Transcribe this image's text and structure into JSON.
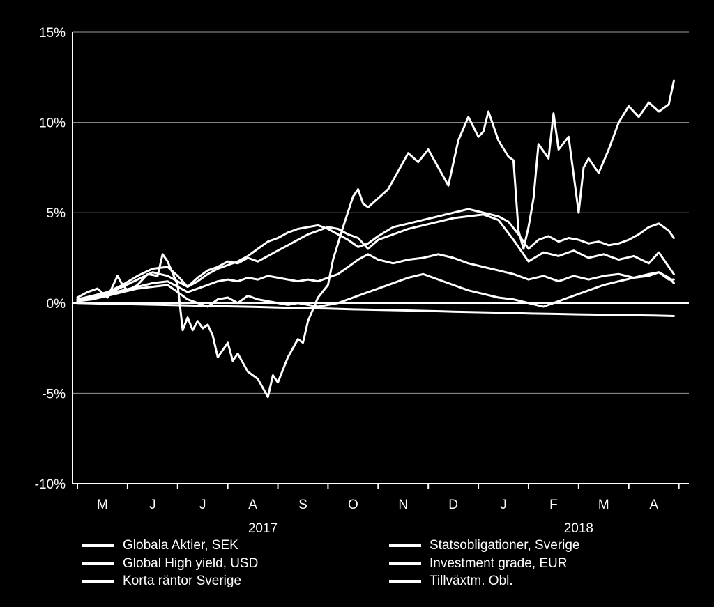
{
  "chart_data": {
    "type": "line",
    "title": "",
    "xlabel": "",
    "ylabel": "",
    "ylim": [
      -10,
      15
    ],
    "yticks": [
      {
        "value": 15,
        "label": "15%"
      },
      {
        "value": 10,
        "label": "10%"
      },
      {
        "value": 5,
        "label": "5%"
      },
      {
        "value": 0,
        "label": "0%"
      },
      {
        "value": -5,
        "label": "-5%"
      },
      {
        "value": -10,
        "label": "-10%"
      }
    ],
    "month_labels": [
      "M",
      "J",
      "J",
      "A",
      "S",
      "O",
      "N",
      "D",
      "J",
      "F",
      "M",
      "A"
    ],
    "year_labels": [
      {
        "label": "2017",
        "month_index": 3.7
      },
      {
        "label": "2018",
        "month_index": 10.0
      }
    ],
    "grid": "horizontal",
    "legend_placement": "bottom",
    "line_color": "#ffffff",
    "x_unit": "months since end of April 2017",
    "series": [
      {
        "name": "Globala Aktier, SEK",
        "x": [
          0,
          0.2,
          0.4,
          0.6,
          0.8,
          0.9,
          1.0,
          1.2,
          1.4,
          1.6,
          1.7,
          1.8,
          2.0,
          2.1,
          2.2,
          2.3,
          2.4,
          2.5,
          2.6,
          2.7,
          2.8,
          3.0,
          3.1,
          3.2,
          3.4,
          3.6,
          3.8,
          3.9,
          4.0,
          4.2,
          4.4,
          4.5,
          4.6,
          4.8,
          5.0,
          5.1,
          5.3,
          5.5,
          5.6,
          5.7,
          5.8,
          6.0,
          6.2,
          6.4,
          6.6,
          6.8,
          7.0,
          7.2,
          7.4,
          7.6,
          7.8,
          8.0,
          8.1,
          8.2,
          8.4,
          8.6,
          8.7,
          8.8,
          8.9,
          9.0,
          9.1,
          9.2,
          9.4,
          9.5,
          9.6,
          9.8,
          10.0,
          10.1,
          10.2,
          10.4,
          10.6,
          10.8,
          11.0,
          11.2,
          11.4,
          11.6,
          11.8,
          11.9
        ],
        "y": [
          0.3,
          0.6,
          0.8,
          0.3,
          1.5,
          1.0,
          0.7,
          1.0,
          1.6,
          1.5,
          2.7,
          2.3,
          1.0,
          -1.5,
          -0.8,
          -1.5,
          -1.0,
          -1.4,
          -1.2,
          -1.8,
          -3.0,
          -2.2,
          -3.2,
          -2.8,
          -3.8,
          -4.2,
          -5.2,
          -4.0,
          -4.4,
          -3.0,
          -2.0,
          -2.2,
          -1.0,
          0.3,
          1.0,
          2.4,
          4.2,
          5.9,
          6.3,
          5.5,
          5.3,
          5.8,
          6.3,
          7.3,
          8.3,
          7.8,
          8.5,
          7.5,
          6.5,
          9.0,
          10.3,
          9.2,
          9.5,
          10.6,
          9.0,
          8.1,
          7.9,
          4.0,
          3.0,
          4.2,
          5.8,
          8.8,
          8.0,
          10.5,
          8.5,
          9.2,
          5.0,
          7.5,
          8.0,
          7.2,
          8.5,
          10.0,
          10.9,
          10.3,
          11.1,
          10.6,
          11.0,
          12.3
        ]
      },
      {
        "name": "Global High yield, USD",
        "x": [
          0,
          0.3,
          0.6,
          0.9,
          1.2,
          1.5,
          1.8,
          2.0,
          2.2,
          2.4,
          2.6,
          2.8,
          3.0,
          3.2,
          3.4,
          3.6,
          3.8,
          4.0,
          4.2,
          4.4,
          4.6,
          4.8,
          5.0,
          5.2,
          5.4,
          5.6,
          5.8,
          6.0,
          6.3,
          6.6,
          6.9,
          7.2,
          7.5,
          7.8,
          8.1,
          8.4,
          8.6,
          8.8,
          9.0,
          9.2,
          9.4,
          9.6,
          9.8,
          10.0,
          10.2,
          10.4,
          10.6,
          10.8,
          11.0,
          11.2,
          11.4,
          11.6,
          11.8,
          11.9
        ],
        "y": [
          0.1,
          0.3,
          0.5,
          0.9,
          1.3,
          1.7,
          1.5,
          1.2,
          0.9,
          1.2,
          1.6,
          1.9,
          2.1,
          2.3,
          2.6,
          3.0,
          3.4,
          3.6,
          3.9,
          4.1,
          4.2,
          4.3,
          4.1,
          3.8,
          3.5,
          3.1,
          3.3,
          3.7,
          4.2,
          4.4,
          4.6,
          4.8,
          5.0,
          5.2,
          5.0,
          4.8,
          4.5,
          3.8,
          3.0,
          3.5,
          3.7,
          3.4,
          3.6,
          3.5,
          3.3,
          3.4,
          3.2,
          3.3,
          3.5,
          3.8,
          4.2,
          4.4,
          4.0,
          3.6
        ]
      },
      {
        "name": "Korta räntor Sverige",
        "x": [
          0,
          0.5,
          1.0,
          1.5,
          2.0,
          2.5,
          3.0,
          3.5,
          4.0,
          4.5,
          5.0,
          5.5,
          6.0,
          6.5,
          7.0,
          7.5,
          8.0,
          8.5,
          9.0,
          9.5,
          10.0,
          10.5,
          11.0,
          11.5,
          11.9
        ],
        "y": [
          0.0,
          -0.03,
          -0.06,
          -0.09,
          -0.12,
          -0.15,
          -0.18,
          -0.21,
          -0.25,
          -0.28,
          -0.31,
          -0.35,
          -0.38,
          -0.41,
          -0.44,
          -0.48,
          -0.51,
          -0.54,
          -0.58,
          -0.6,
          -0.63,
          -0.65,
          -0.67,
          -0.69,
          -0.72
        ]
      },
      {
        "name": "Statsobligationer, Sverige",
        "x": [
          0,
          0.3,
          0.6,
          0.9,
          1.2,
          1.5,
          1.8,
          2.0,
          2.2,
          2.4,
          2.6,
          2.8,
          3.0,
          3.2,
          3.4,
          3.6,
          3.8,
          4.0,
          4.2,
          4.4,
          4.6,
          4.8,
          5.0,
          5.2,
          5.4,
          5.6,
          5.8,
          6.0,
          6.3,
          6.6,
          6.9,
          7.2,
          7.5,
          7.8,
          8.1,
          8.4,
          8.7,
          9.0,
          9.3,
          9.6,
          9.9,
          10.2,
          10.5,
          10.8,
          11.1,
          11.4,
          11.6,
          11.8,
          11.9
        ],
        "y": [
          0.2,
          0.4,
          0.6,
          1.0,
          1.5,
          1.9,
          2.0,
          1.5,
          0.9,
          1.4,
          1.8,
          2.0,
          2.3,
          2.2,
          2.5,
          2.3,
          2.6,
          2.9,
          3.2,
          3.5,
          3.8,
          4.0,
          4.2,
          4.1,
          3.8,
          3.6,
          3.0,
          3.5,
          3.8,
          4.1,
          4.3,
          4.5,
          4.7,
          4.8,
          4.9,
          4.6,
          3.5,
          2.3,
          2.8,
          2.6,
          2.9,
          2.5,
          2.7,
          2.4,
          2.6,
          2.2,
          2.8,
          2.0,
          1.6
        ]
      },
      {
        "name": "Investment grade, EUR",
        "x": [
          0,
          0.3,
          0.6,
          0.9,
          1.2,
          1.5,
          1.8,
          2.0,
          2.2,
          2.4,
          2.6,
          2.8,
          3.0,
          3.2,
          3.4,
          3.6,
          3.8,
          4.0,
          4.2,
          4.4,
          4.6,
          4.8,
          5.0,
          5.2,
          5.4,
          5.6,
          5.8,
          6.0,
          6.3,
          6.6,
          6.9,
          7.2,
          7.5,
          7.8,
          8.1,
          8.4,
          8.7,
          9.0,
          9.3,
          9.6,
          9.9,
          10.2,
          10.5,
          10.8,
          11.1,
          11.4,
          11.6,
          11.8,
          11.9
        ],
        "y": [
          0.2,
          0.3,
          0.5,
          0.7,
          0.9,
          1.1,
          1.2,
          0.9,
          0.6,
          0.8,
          1.0,
          1.2,
          1.3,
          1.2,
          1.4,
          1.3,
          1.5,
          1.4,
          1.3,
          1.2,
          1.3,
          1.2,
          1.4,
          1.6,
          2.0,
          2.4,
          2.7,
          2.4,
          2.2,
          2.4,
          2.5,
          2.7,
          2.5,
          2.2,
          2.0,
          1.8,
          1.6,
          1.3,
          1.5,
          1.2,
          1.5,
          1.3,
          1.5,
          1.6,
          1.4,
          1.5,
          1.7,
          1.3,
          1.3
        ]
      },
      {
        "name": "Tillväxtm. Obl.",
        "x": [
          0,
          0.3,
          0.6,
          0.9,
          1.2,
          1.5,
          1.8,
          2.0,
          2.2,
          2.4,
          2.6,
          2.8,
          3.0,
          3.2,
          3.4,
          3.6,
          3.8,
          4.0,
          4.2,
          4.4,
          4.6,
          4.8,
          5.0,
          5.2,
          5.4,
          5.6,
          5.8,
          6.0,
          6.3,
          6.6,
          6.9,
          7.2,
          7.5,
          7.8,
          8.1,
          8.4,
          8.7,
          9.0,
          9.3,
          9.6,
          9.9,
          10.2,
          10.5,
          10.8,
          11.1,
          11.4,
          11.6,
          11.8,
          11.9
        ],
        "y": [
          0.1,
          0.2,
          0.4,
          0.6,
          0.8,
          0.9,
          1.0,
          0.6,
          0.2,
          0.0,
          -0.2,
          0.2,
          0.3,
          0.0,
          0.4,
          0.2,
          0.1,
          0.0,
          -0.1,
          0.0,
          -0.1,
          -0.2,
          -0.1,
          0.0,
          0.2,
          0.4,
          0.6,
          0.8,
          1.1,
          1.4,
          1.6,
          1.3,
          1.0,
          0.7,
          0.5,
          0.3,
          0.2,
          0.0,
          -0.2,
          0.1,
          0.4,
          0.7,
          1.0,
          1.2,
          1.4,
          1.6,
          1.7,
          1.4,
          1.1
        ]
      }
    ]
  }
}
